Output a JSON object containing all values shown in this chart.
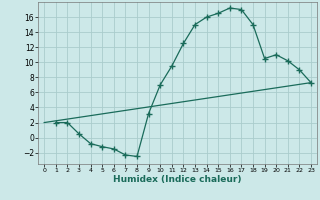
{
  "xlabel": "Humidex (Indice chaleur)",
  "background_color": "#cce8e8",
  "grid_color": "#aacccc",
  "line_color": "#1a6b5a",
  "curve1_x": [
    1,
    2,
    3,
    4,
    5,
    6,
    7,
    8,
    9,
    10,
    11,
    12,
    13,
    14,
    15,
    16,
    17,
    18,
    19,
    20,
    21,
    22,
    23
  ],
  "curve1_y": [
    2.0,
    2.0,
    0.5,
    -0.8,
    -1.2,
    -1.5,
    -2.3,
    -2.5,
    3.2,
    7.0,
    9.5,
    12.5,
    15.0,
    16.0,
    16.5,
    17.2,
    17.0,
    15.0,
    10.5,
    11.0,
    10.2,
    9.0,
    7.3
  ],
  "curve2_x": [
    0,
    23
  ],
  "curve2_y": [
    2.0,
    7.3
  ],
  "xlim": [
    -0.5,
    23.5
  ],
  "ylim": [
    -3.5,
    18.0
  ],
  "yticks": [
    -2,
    0,
    2,
    4,
    6,
    8,
    10,
    12,
    14,
    16
  ],
  "xticks": [
    0,
    1,
    2,
    3,
    4,
    5,
    6,
    7,
    8,
    9,
    10,
    11,
    12,
    13,
    14,
    15,
    16,
    17,
    18,
    19,
    20,
    21,
    22,
    23
  ]
}
